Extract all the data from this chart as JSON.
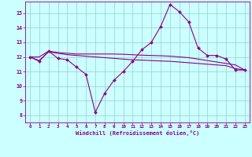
{
  "xlabel": "Windchill (Refroidissement éolien,°C)",
  "bg_color": "#ccffff",
  "line_color": "#880088",
  "grid_color": "#99cccc",
  "xlim": [
    -0.5,
    23.5
  ],
  "ylim": [
    7.5,
    15.8
  ],
  "yticks": [
    8,
    9,
    10,
    11,
    12,
    13,
    14,
    15
  ],
  "xticks": [
    0,
    1,
    2,
    3,
    4,
    5,
    6,
    7,
    8,
    9,
    10,
    11,
    12,
    13,
    14,
    15,
    16,
    17,
    18,
    19,
    20,
    21,
    22,
    23
  ],
  "main_x": [
    0,
    1,
    2,
    3,
    4,
    5,
    6,
    7,
    8,
    9,
    10,
    11,
    12,
    13,
    14,
    15,
    16,
    17,
    18,
    19,
    20,
    21,
    22,
    23
  ],
  "main_y": [
    12.0,
    11.7,
    12.4,
    11.9,
    11.8,
    11.3,
    10.8,
    8.2,
    9.5,
    10.4,
    11.0,
    11.7,
    12.5,
    13.0,
    14.1,
    15.6,
    15.1,
    14.4,
    12.6,
    12.1,
    12.1,
    11.85,
    11.1,
    11.1
  ],
  "line2_x": [
    0,
    1,
    2,
    3,
    4,
    5,
    6,
    7,
    8,
    9,
    10,
    11,
    12,
    13,
    14,
    15,
    16,
    17,
    18,
    19,
    20,
    21,
    22,
    23
  ],
  "line2_y": [
    12.0,
    11.75,
    12.35,
    12.25,
    12.15,
    12.1,
    12.05,
    12.0,
    11.95,
    11.9,
    11.85,
    11.8,
    11.78,
    11.75,
    11.72,
    11.7,
    11.65,
    11.6,
    11.55,
    11.5,
    11.45,
    11.4,
    11.2,
    11.1
  ],
  "line3_x": [
    0,
    1,
    2,
    3,
    4,
    5,
    6,
    7,
    8,
    9,
    10,
    11,
    12,
    13,
    14,
    15,
    16,
    17,
    18,
    19,
    20,
    21,
    22,
    23
  ],
  "line3_y": [
    12.0,
    12.0,
    12.4,
    12.3,
    12.25,
    12.2,
    12.2,
    12.2,
    12.2,
    12.2,
    12.18,
    12.15,
    12.12,
    12.1,
    12.08,
    12.05,
    12.0,
    11.95,
    11.85,
    11.75,
    11.65,
    11.55,
    11.45,
    11.1
  ]
}
